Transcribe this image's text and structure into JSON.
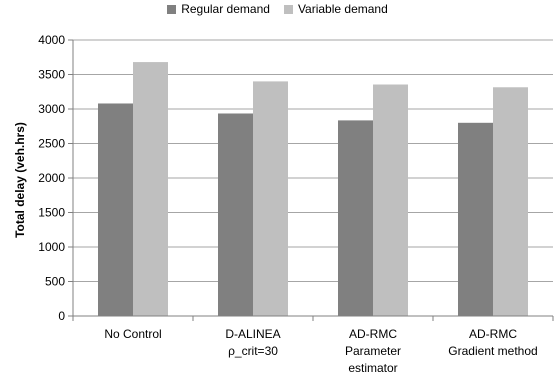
{
  "chart_data": {
    "type": "bar",
    "title": "",
    "xlabel": "",
    "ylabel": "Total delay (veh.hrs)",
    "ylim": [
      0,
      4000
    ],
    "yticks": [
      0,
      500,
      1000,
      1500,
      2000,
      2500,
      3000,
      3500,
      4000
    ],
    "grid": true,
    "legend_position": "top",
    "categories": [
      [
        "No Control"
      ],
      [
        "D-ALINEA",
        "ρ_crit=30"
      ],
      [
        "AD-RMC",
        "Parameter",
        "estimator"
      ],
      [
        "AD-RMC",
        "Gradient method"
      ]
    ],
    "series": [
      {
        "name": "Regular demand",
        "color": "#808080",
        "values": [
          3080,
          2935,
          2835,
          2800
        ]
      },
      {
        "name": "Variable demand",
        "color": "#bfbfbf",
        "values": [
          3680,
          3400,
          3355,
          3315
        ]
      }
    ]
  }
}
